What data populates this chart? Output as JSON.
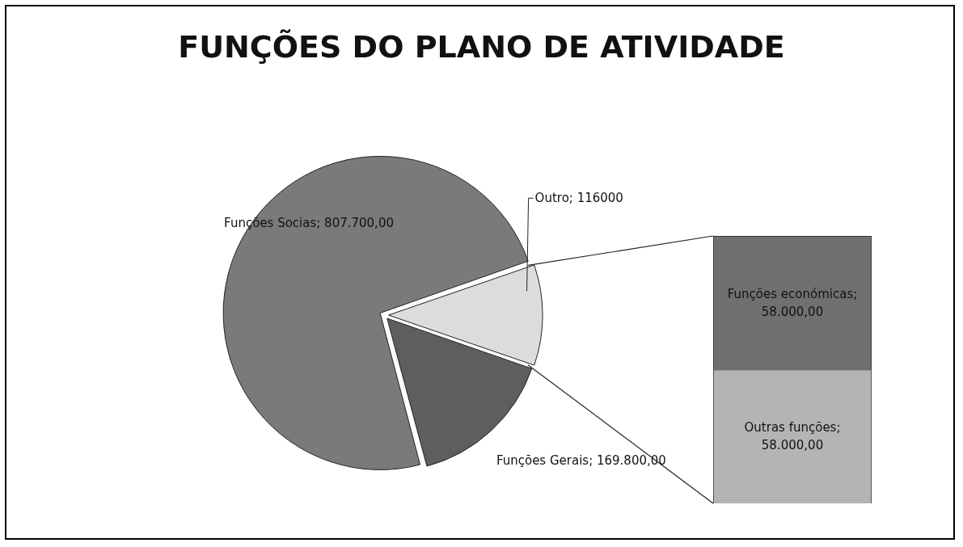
{
  "chart_data": [
    {
      "type": "pie",
      "title": "FUNÇÕES DO PLANO DE ATIVIDADE",
      "categories": [
        "Funções Socias",
        "Outro",
        "Funções Gerais"
      ],
      "values": [
        807700,
        116000,
        169800
      ],
      "colors": [
        "#7a7a7a",
        "#dcdcdc",
        "#5e5e5e"
      ],
      "value_labels": [
        "807.700,00",
        "116000",
        "169.800,00"
      ]
    },
    {
      "type": "bar",
      "stacked": true,
      "categories": [
        null
      ],
      "series": [
        {
          "name": "Outras funções;",
          "color": "#b4b4b4",
          "values": [
            58000
          ],
          "value_labels": [
            "58.000,00"
          ]
        },
        {
          "name": "Funções económicas;",
          "color": "#707070",
          "values": [
            58000
          ],
          "value_labels": [
            "58.000,00"
          ]
        }
      ]
    }
  ]
}
